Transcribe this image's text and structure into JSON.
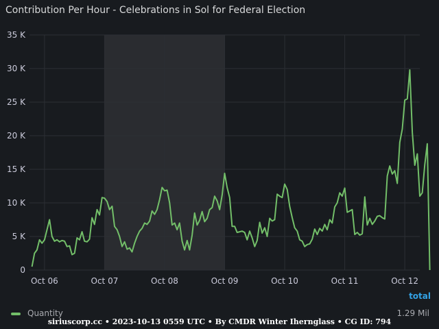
{
  "panel": {
    "title": "Contribution Per Hour - Celebrations in Sol for Federal Election",
    "total_label": "total",
    "legend": {
      "label": "Quantity",
      "total": "1.29 Mil"
    },
    "footer": "siriuscorp.cc • 2023-10-13 0559 UTC • By CMDR Winter Ihernglass • CG ID: 794"
  },
  "colors": {
    "background": "#181b1f",
    "series": "#73bf69",
    "grid": "#2c2f34",
    "highlight": "#2a2c30",
    "accent": "#33a2e5"
  },
  "chart_data": {
    "type": "line",
    "title": "Contribution Per Hour - Celebrations in Sol for Federal Election",
    "xlabel": "",
    "ylabel": "",
    "ylim": [
      0,
      35000
    ],
    "y_ticks": [
      0,
      5000,
      10000,
      15000,
      20000,
      25000,
      30000,
      35000
    ],
    "y_tick_labels": [
      "0",
      "5 K",
      "10 K",
      "15 K",
      "20 K",
      "25 K",
      "30 K",
      "35 K"
    ],
    "x_ticks": [
      "Oct 06",
      "Oct 07",
      "Oct 08",
      "Oct 09",
      "Oct 10",
      "Oct 11",
      "Oct 12"
    ],
    "xlim": [
      "2023-10-05 18:00",
      "2023-10-12 06:00"
    ],
    "grid": true,
    "legend_position": "bottom",
    "highlighted_range": [
      "2023-10-07 00:00",
      "2023-10-09 00:00"
    ],
    "series": [
      {
        "name": "Quantity",
        "color": "#73bf69",
        "points": [
          [
            "2023-10-05 19:00",
            500
          ],
          [
            "2023-10-05 20:00",
            2500
          ],
          [
            "2023-10-05 21:00",
            3000
          ],
          [
            "2023-10-05 22:00",
            4500
          ],
          [
            "2023-10-05 23:00",
            4000
          ],
          [
            "2023-10-06 00:00",
            4500
          ],
          [
            "2023-10-06 01:00",
            6000
          ],
          [
            "2023-10-06 02:00",
            7500
          ],
          [
            "2023-10-06 03:00",
            5000
          ],
          [
            "2023-10-06 04:00",
            4300
          ],
          [
            "2023-10-06 05:00",
            4500
          ],
          [
            "2023-10-06 06:00",
            4200
          ],
          [
            "2023-10-06 07:00",
            4400
          ],
          [
            "2023-10-06 08:00",
            4300
          ],
          [
            "2023-10-06 09:00",
            3500
          ],
          [
            "2023-10-06 10:00",
            3600
          ],
          [
            "2023-10-06 11:00",
            2300
          ],
          [
            "2023-10-06 12:00",
            2500
          ],
          [
            "2023-10-06 13:00",
            4800
          ],
          [
            "2023-10-06 14:00",
            4500
          ],
          [
            "2023-10-06 15:00",
            5700
          ],
          [
            "2023-10-06 16:00",
            4300
          ],
          [
            "2023-10-06 17:00",
            4200
          ],
          [
            "2023-10-06 18:00",
            4600
          ],
          [
            "2023-10-06 19:00",
            7800
          ],
          [
            "2023-10-06 20:00",
            6800
          ],
          [
            "2023-10-06 21:00",
            9000
          ],
          [
            "2023-10-06 22:00",
            8200
          ],
          [
            "2023-10-06 23:00",
            10800
          ],
          [
            "2023-10-07 00:00",
            10700
          ],
          [
            "2023-10-07 01:00",
            10200
          ],
          [
            "2023-10-07 02:00",
            9000
          ],
          [
            "2023-10-07 03:00",
            9500
          ],
          [
            "2023-10-07 04:00",
            6500
          ],
          [
            "2023-10-07 05:00",
            6000
          ],
          [
            "2023-10-07 06:00",
            5000
          ],
          [
            "2023-10-07 07:00",
            3500
          ],
          [
            "2023-10-07 08:00",
            4200
          ],
          [
            "2023-10-07 09:00",
            3100
          ],
          [
            "2023-10-07 10:00",
            3300
          ],
          [
            "2023-10-07 11:00",
            2700
          ],
          [
            "2023-10-07 12:00",
            4000
          ],
          [
            "2023-10-07 13:00",
            5000
          ],
          [
            "2023-10-07 14:00",
            5800
          ],
          [
            "2023-10-07 15:00",
            6200
          ],
          [
            "2023-10-07 16:00",
            7000
          ],
          [
            "2023-10-07 17:00",
            6800
          ],
          [
            "2023-10-07 18:00",
            7300
          ],
          [
            "2023-10-07 19:00",
            8800
          ],
          [
            "2023-10-07 20:00",
            8300
          ],
          [
            "2023-10-07 21:00",
            9000
          ],
          [
            "2023-10-07 22:00",
            10500
          ],
          [
            "2023-10-07 23:00",
            12300
          ],
          [
            "2023-10-08 00:00",
            11800
          ],
          [
            "2023-10-08 01:00",
            11900
          ],
          [
            "2023-10-08 02:00",
            10000
          ],
          [
            "2023-10-08 03:00",
            6700
          ],
          [
            "2023-10-08 04:00",
            7000
          ],
          [
            "2023-10-08 05:00",
            6000
          ],
          [
            "2023-10-08 06:00",
            7000
          ],
          [
            "2023-10-08 07:00",
            4300
          ],
          [
            "2023-10-08 08:00",
            3000
          ],
          [
            "2023-10-08 09:00",
            4400
          ],
          [
            "2023-10-08 10:00",
            3000
          ],
          [
            "2023-10-08 11:00",
            5200
          ],
          [
            "2023-10-08 12:00",
            8500
          ],
          [
            "2023-10-08 13:00",
            6700
          ],
          [
            "2023-10-08 14:00",
            7400
          ],
          [
            "2023-10-08 15:00",
            8700
          ],
          [
            "2023-10-08 16:00",
            7200
          ],
          [
            "2023-10-08 17:00",
            7700
          ],
          [
            "2023-10-08 18:00",
            9000
          ],
          [
            "2023-10-08 19:00",
            9300
          ],
          [
            "2023-10-08 20:00",
            11000
          ],
          [
            "2023-10-08 21:00",
            10300
          ],
          [
            "2023-10-08 22:00",
            9000
          ],
          [
            "2023-10-08 23:00",
            11200
          ],
          [
            "2023-10-09 00:00",
            14400
          ],
          [
            "2023-10-09 01:00",
            12300
          ],
          [
            "2023-10-09 02:00",
            10800
          ],
          [
            "2023-10-09 03:00",
            6500
          ],
          [
            "2023-10-09 04:00",
            6500
          ],
          [
            "2023-10-09 05:00",
            5600
          ],
          [
            "2023-10-09 06:00",
            5700
          ],
          [
            "2023-10-09 07:00",
            5800
          ],
          [
            "2023-10-09 08:00",
            5600
          ],
          [
            "2023-10-09 09:00",
            4500
          ],
          [
            "2023-10-09 10:00",
            5800
          ],
          [
            "2023-10-09 11:00",
            4800
          ],
          [
            "2023-10-09 12:00",
            3500
          ],
          [
            "2023-10-09 13:00",
            4400
          ],
          [
            "2023-10-09 14:00",
            7100
          ],
          [
            "2023-10-09 15:00",
            5500
          ],
          [
            "2023-10-09 16:00",
            6300
          ],
          [
            "2023-10-09 17:00",
            5000
          ],
          [
            "2023-10-09 18:00",
            7700
          ],
          [
            "2023-10-09 19:00",
            7300
          ],
          [
            "2023-10-09 20:00",
            7500
          ],
          [
            "2023-10-09 21:00",
            11300
          ],
          [
            "2023-10-09 22:00",
            11000
          ],
          [
            "2023-10-09 23:00",
            10800
          ],
          [
            "2023-10-10 00:00",
            12800
          ],
          [
            "2023-10-10 01:00",
            12000
          ],
          [
            "2023-10-10 02:00",
            9500
          ],
          [
            "2023-10-10 03:00",
            7800
          ],
          [
            "2023-10-10 04:00",
            6300
          ],
          [
            "2023-10-10 05:00",
            5800
          ],
          [
            "2023-10-10 06:00",
            4500
          ],
          [
            "2023-10-10 07:00",
            4300
          ],
          [
            "2023-10-10 08:00",
            3500
          ],
          [
            "2023-10-10 09:00",
            3800
          ],
          [
            "2023-10-10 10:00",
            3900
          ],
          [
            "2023-10-10 11:00",
            4600
          ],
          [
            "2023-10-10 12:00",
            6100
          ],
          [
            "2023-10-10 13:00",
            5300
          ],
          [
            "2023-10-10 14:00",
            6200
          ],
          [
            "2023-10-10 15:00",
            5800
          ],
          [
            "2023-10-10 16:00",
            6800
          ],
          [
            "2023-10-10 17:00",
            6000
          ],
          [
            "2023-10-10 18:00",
            7500
          ],
          [
            "2023-10-10 19:00",
            7000
          ],
          [
            "2023-10-10 20:00",
            9400
          ],
          [
            "2023-10-10 21:00",
            10000
          ],
          [
            "2023-10-10 22:00",
            11500
          ],
          [
            "2023-10-10 23:00",
            11000
          ],
          [
            "2023-10-11 00:00",
            12200
          ],
          [
            "2023-10-11 01:00",
            8600
          ],
          [
            "2023-10-11 02:00",
            8800
          ],
          [
            "2023-10-11 03:00",
            9000
          ],
          [
            "2023-10-11 04:00",
            5300
          ],
          [
            "2023-10-11 05:00",
            5600
          ],
          [
            "2023-10-11 06:00",
            5200
          ],
          [
            "2023-10-11 07:00",
            5400
          ],
          [
            "2023-10-11 08:00",
            10900
          ],
          [
            "2023-10-11 09:00",
            6700
          ],
          [
            "2023-10-11 10:00",
            7700
          ],
          [
            "2023-10-11 11:00",
            6800
          ],
          [
            "2023-10-11 12:00",
            7300
          ],
          [
            "2023-10-11 13:00",
            8000
          ],
          [
            "2023-10-11 14:00",
            8100
          ],
          [
            "2023-10-11 15:00",
            7800
          ],
          [
            "2023-10-11 16:00",
            7600
          ],
          [
            "2023-10-11 17:00",
            14000
          ],
          [
            "2023-10-11 18:00",
            15500
          ],
          [
            "2023-10-11 19:00",
            14300
          ],
          [
            "2023-10-11 20:00",
            14800
          ],
          [
            "2023-10-11 21:00",
            12900
          ],
          [
            "2023-10-11 22:00",
            19000
          ],
          [
            "2023-10-11 23:00",
            21000
          ],
          [
            "2023-10-12 00:00",
            25300
          ],
          [
            "2023-10-12 01:00",
            25500
          ],
          [
            "2023-10-12 02:00",
            29800
          ],
          [
            "2023-10-12 03:00",
            20500
          ],
          [
            "2023-10-12 04:00",
            15600
          ],
          [
            "2023-10-12 05:00",
            17300
          ],
          [
            "2023-10-12 06:00",
            11000
          ],
          [
            "2023-10-12 07:00",
            11500
          ],
          [
            "2023-10-12 08:00",
            15700
          ],
          [
            "2023-10-12 09:00",
            18800
          ],
          [
            "2023-10-12 10:00",
            0
          ]
        ]
      }
    ]
  }
}
